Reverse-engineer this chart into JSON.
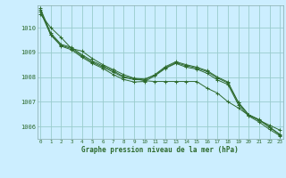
{
  "title": "Graphe pression niveau de la mer (hPa)",
  "background_color": "#cceeff",
  "grid_color": "#99cccc",
  "line_color": "#2d6a2d",
  "marker_color": "#2d6a2d",
  "xlim": [
    -0.3,
    23.3
  ],
  "ylim": [
    1005.5,
    1010.9
  ],
  "yticks": [
    1006,
    1007,
    1008,
    1009,
    1010
  ],
  "xticks": [
    0,
    1,
    2,
    3,
    4,
    5,
    6,
    7,
    8,
    9,
    10,
    11,
    12,
    13,
    14,
    15,
    16,
    17,
    18,
    19,
    20,
    21,
    22,
    23
  ],
  "series": [
    [
      1010.55,
      1010.0,
      1009.6,
      1009.15,
      1009.05,
      1008.75,
      1008.5,
      1008.3,
      1008.1,
      1007.95,
      1007.85,
      1007.82,
      1007.82,
      1007.82,
      1007.82,
      1007.82,
      1007.55,
      1007.35,
      1007.0,
      1006.75,
      1006.45,
      1006.25,
      1006.05,
      1005.85
    ],
    [
      1010.65,
      1009.7,
      1009.25,
      1009.1,
      1008.8,
      1008.55,
      1008.35,
      1008.1,
      1007.9,
      1007.8,
      1007.82,
      1008.05,
      1008.35,
      1008.55,
      1008.4,
      1008.32,
      1008.15,
      1007.88,
      1007.7,
      1006.88,
      1006.42,
      1006.18,
      1005.88,
      1005.62
    ],
    [
      1010.72,
      1009.72,
      1009.28,
      1009.15,
      1008.85,
      1008.6,
      1008.4,
      1008.2,
      1007.98,
      1007.9,
      1007.88,
      1008.1,
      1008.42,
      1008.62,
      1008.5,
      1008.4,
      1008.26,
      1008.0,
      1007.8,
      1006.98,
      1006.48,
      1006.28,
      1005.98,
      1005.68
    ],
    [
      1010.78,
      1009.78,
      1009.32,
      1009.2,
      1008.9,
      1008.65,
      1008.45,
      1008.25,
      1008.02,
      1007.95,
      1007.92,
      1008.08,
      1008.38,
      1008.58,
      1008.46,
      1008.36,
      1008.22,
      1007.96,
      1007.76,
      1006.96,
      1006.46,
      1006.26,
      1005.96,
      1005.66
    ]
  ]
}
